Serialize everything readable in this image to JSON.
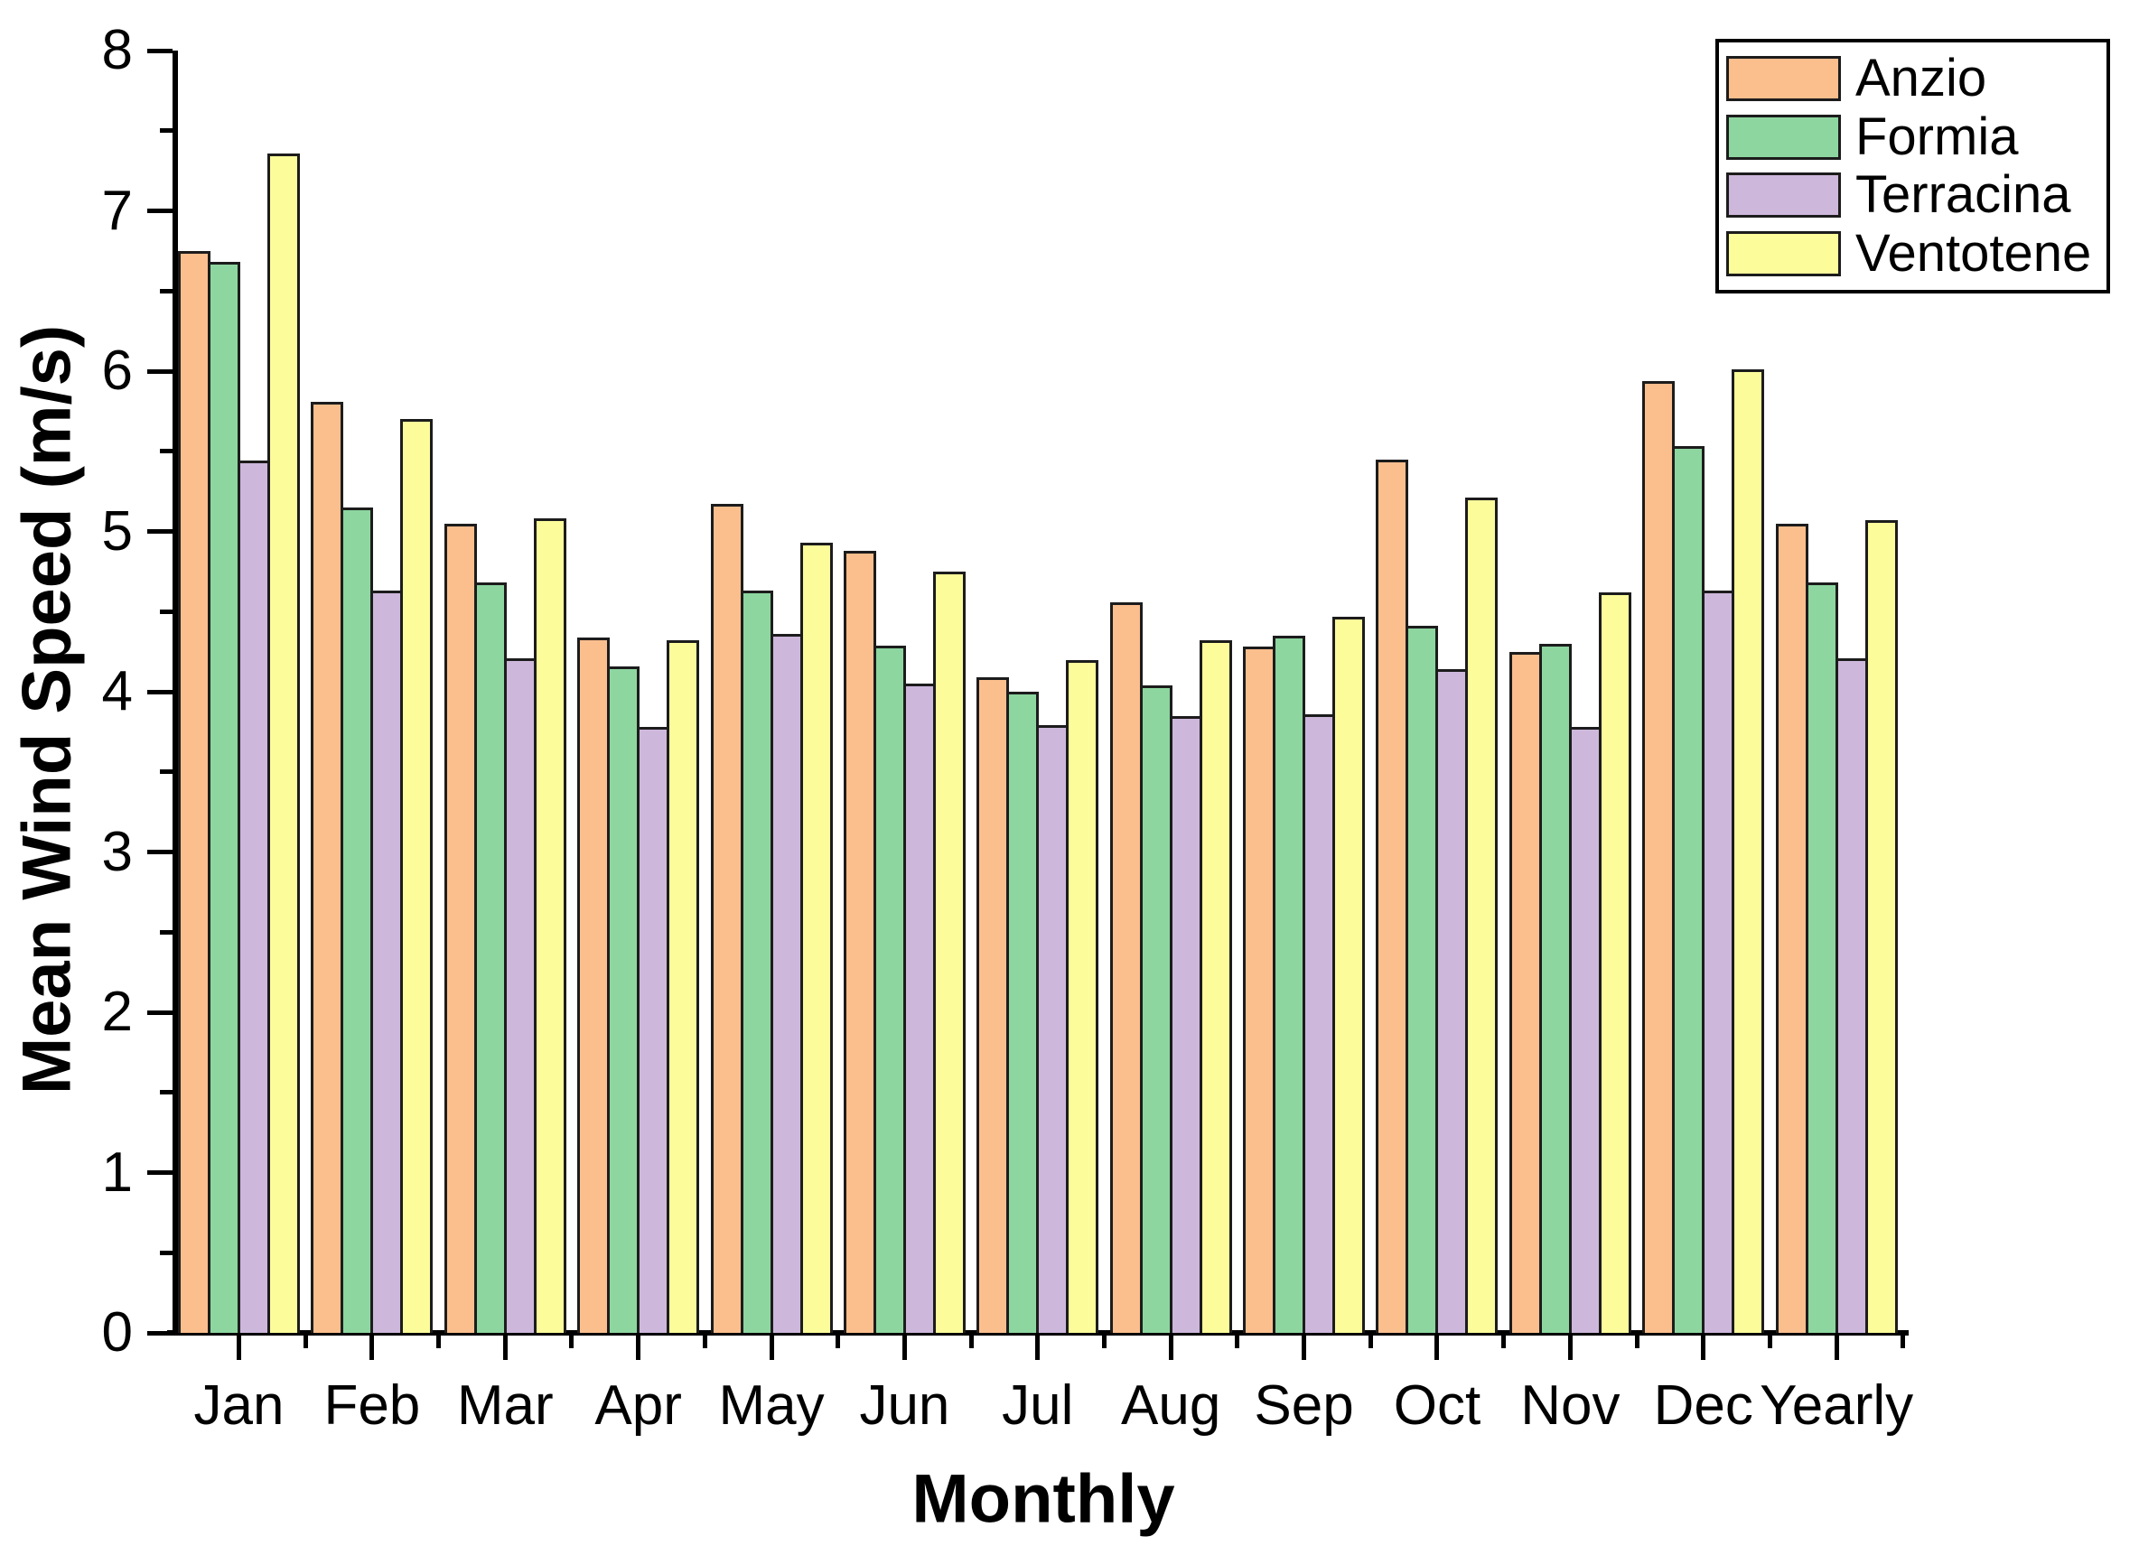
{
  "chart_data": {
    "type": "bar",
    "title": "",
    "xlabel": "Monthly",
    "ylabel": "Mean Wind Speed (m/s)",
    "categories": [
      "Jan",
      "Feb",
      "Mar",
      "Apr",
      "May",
      "Jun",
      "Jul",
      "Aug",
      "Sep",
      "Oct",
      "Nov",
      "Dec",
      "Yearly"
    ],
    "series": [
      {
        "name": "Anzio",
        "color": "#FBBE8D",
        "values": [
          6.75,
          5.81,
          5.05,
          4.34,
          5.17,
          4.88,
          4.09,
          4.56,
          4.28,
          5.45,
          4.25,
          5.94,
          5.05
        ]
      },
      {
        "name": "Formia",
        "color": "#8DD6A0",
        "values": [
          6.68,
          5.15,
          4.68,
          4.16,
          4.63,
          4.29,
          4.0,
          4.04,
          4.35,
          4.41,
          4.3,
          5.53,
          4.68
        ]
      },
      {
        "name": "Terracina",
        "color": "#CDB7DB",
        "values": [
          5.44,
          4.63,
          4.21,
          3.78,
          4.36,
          4.05,
          3.79,
          3.85,
          3.86,
          4.14,
          3.78,
          4.63,
          4.21
        ]
      },
      {
        "name": "Ventotene",
        "color": "#FCFC9B",
        "values": [
          7.36,
          5.7,
          5.08,
          4.32,
          4.93,
          4.75,
          4.2,
          4.32,
          4.47,
          5.21,
          4.62,
          6.01,
          5.07
        ]
      }
    ],
    "ylim": [
      0,
      8
    ],
    "y_major_tick_step": 1,
    "y_minor_tick_step": 0.5,
    "y_tick_labels": [
      "0",
      "1",
      "2",
      "3",
      "4",
      "5",
      "6",
      "7",
      "8"
    ],
    "grid": false,
    "legend_position": "top-right",
    "bar_border_color": "#1c1c1c",
    "axis_color": "#000000",
    "background_color": "#ffffff"
  }
}
